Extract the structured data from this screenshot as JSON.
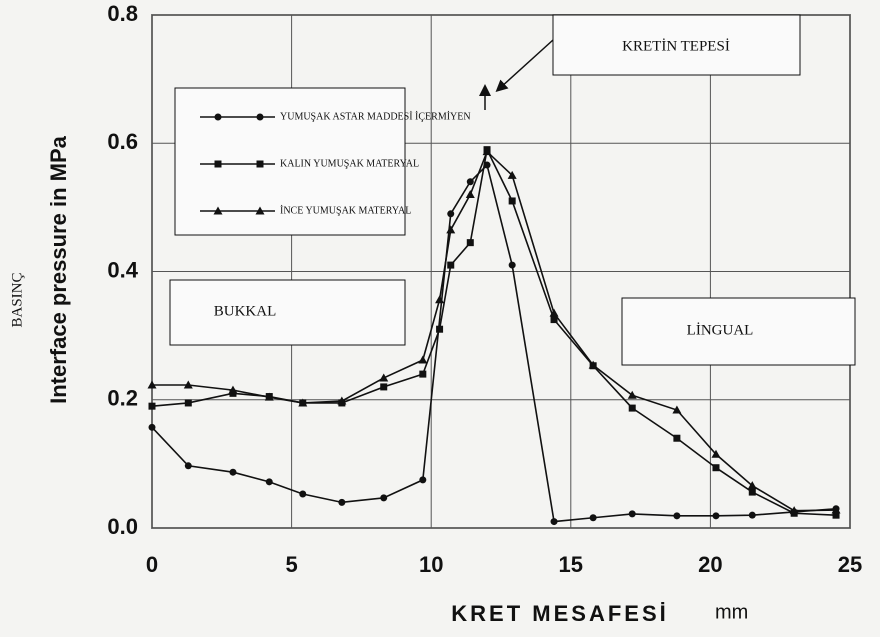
{
  "chart_data": {
    "type": "line",
    "y_label": "Interface pressure in MPa",
    "y_label_secondary": "BASINÇ",
    "x_label": "KRET MESAFESİ",
    "x_unit": "mm",
    "annotations": [
      "KRETİN TEPESİ",
      "BUKKAL",
      "LİNGUAL"
    ],
    "xlim": [
      0,
      25
    ],
    "xticks": [
      0,
      5,
      10,
      15,
      20,
      25
    ],
    "ylim": [
      0,
      0.8
    ],
    "yticks": [
      {
        "value": 0,
        "label": "0.0"
      },
      0.2,
      0.4,
      0.6,
      0.8
    ],
    "grid": true,
    "legend": "upper left",
    "series": [
      {
        "name": "YUMUŞAK ASTAR MADDESİ İÇERMİYEN",
        "color": "#111111",
        "marker": "circle",
        "x": [
          0,
          1.3,
          2.9,
          4.2,
          5.4,
          6.8,
          8.3,
          9.7,
          10.7,
          11.4,
          12.0,
          12.9,
          14.4,
          15.8,
          17.2,
          18.8,
          20.2,
          21.5,
          23.0,
          24.5
        ],
        "values": [
          0.157,
          0.097,
          0.087,
          0.072,
          0.053,
          0.04,
          0.047,
          0.075,
          0.49,
          0.54,
          0.566,
          0.41,
          0.01,
          0.016,
          0.022,
          0.019,
          0.019,
          0.02,
          0.025,
          0.03
        ]
      },
      {
        "name": "KALIN YUMUŞAK MATERYAL",
        "color": "#111111",
        "marker": "square",
        "x": [
          0,
          1.3,
          2.9,
          4.2,
          5.4,
          6.8,
          8.3,
          9.7,
          10.3,
          10.7,
          11.4,
          12.0,
          12.9,
          14.4,
          15.8,
          17.2,
          18.8,
          20.2,
          21.5,
          23.0,
          24.5
        ],
        "values": [
          0.19,
          0.195,
          0.21,
          0.205,
          0.195,
          0.195,
          0.22,
          0.24,
          0.31,
          0.41,
          0.445,
          0.59,
          0.51,
          0.325,
          0.253,
          0.187,
          0.14,
          0.094,
          0.056,
          0.023,
          0.02
        ]
      },
      {
        "name": "İNCE YUMUŞAK MATERYAL",
        "color": "#111111",
        "marker": "triangle",
        "x": [
          0,
          1.3,
          2.9,
          4.2,
          5.4,
          6.8,
          8.3,
          9.7,
          10.3,
          10.7,
          11.4,
          12.0,
          12.9,
          14.4,
          15.8,
          17.2,
          18.8,
          20.2,
          21.5,
          23.0,
          24.5
        ],
        "values": [
          0.223,
          0.223,
          0.215,
          0.204,
          0.195,
          0.198,
          0.234,
          0.262,
          0.356,
          0.465,
          0.52,
          0.587,
          0.55,
          0.335,
          0.254,
          0.207,
          0.184,
          0.115,
          0.066,
          0.027,
          0.028
        ]
      }
    ]
  }
}
